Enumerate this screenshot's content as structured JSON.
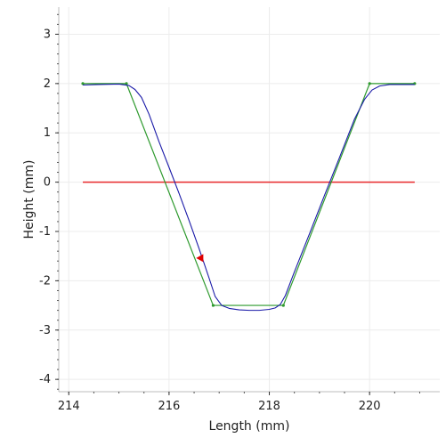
{
  "chart_data": {
    "type": "line",
    "title": "",
    "xlabel": "Length (mm)",
    "ylabel": "Height (mm)",
    "xlim": [
      213.8,
      221.4
    ],
    "ylim": [
      -4.25,
      3.55
    ],
    "x_ticks": [
      214,
      216,
      218,
      220
    ],
    "x_tick_labels": [
      "214",
      "216",
      "218",
      "220"
    ],
    "y_ticks": [
      3,
      2,
      1,
      0,
      -1,
      -2,
      -3,
      -4
    ],
    "y_tick_labels": [
      "3",
      "2",
      "1",
      "0",
      "-1",
      "-2",
      "-3",
      "-4"
    ],
    "grid": true,
    "legend": "none",
    "series": [
      {
        "role": "reference",
        "color": "#e8282b",
        "x": [
          214.28,
          220.9
        ],
        "y": [
          0,
          0
        ]
      },
      {
        "role": "nominal-profile",
        "color": "#2e9a2e",
        "x": [
          214.28,
          215.15,
          216.88,
          218.28,
          220.0,
          220.9
        ],
        "y": [
          2.0,
          2.0,
          -2.5,
          -2.5,
          2.0,
          2.0
        ]
      },
      {
        "role": "measured-profile",
        "color": "#1a1aa8",
        "x": [
          214.28,
          214.6,
          215.0,
          215.2,
          215.32,
          215.45,
          215.6,
          215.8,
          216.0,
          216.2,
          216.4,
          216.6,
          216.8,
          216.92,
          217.05,
          217.2,
          217.4,
          217.6,
          217.8,
          218.0,
          218.12,
          218.22,
          218.32,
          218.5,
          218.8,
          219.1,
          219.4,
          219.7,
          219.9,
          220.05,
          220.2,
          220.4,
          220.6,
          220.9
        ],
        "y": [
          1.97,
          1.98,
          1.99,
          1.96,
          1.88,
          1.72,
          1.38,
          0.82,
          0.3,
          -0.23,
          -0.78,
          -1.35,
          -1.95,
          -2.32,
          -2.5,
          -2.56,
          -2.59,
          -2.6,
          -2.6,
          -2.58,
          -2.55,
          -2.48,
          -2.3,
          -1.82,
          -1.05,
          -0.27,
          0.5,
          1.28,
          1.68,
          1.87,
          1.95,
          1.98,
          1.98,
          1.98
        ]
      }
    ],
    "markers": [
      {
        "shape": "triangle-left",
        "color": "#e00000",
        "x": 216.63,
        "y": -1.54
      }
    ]
  }
}
